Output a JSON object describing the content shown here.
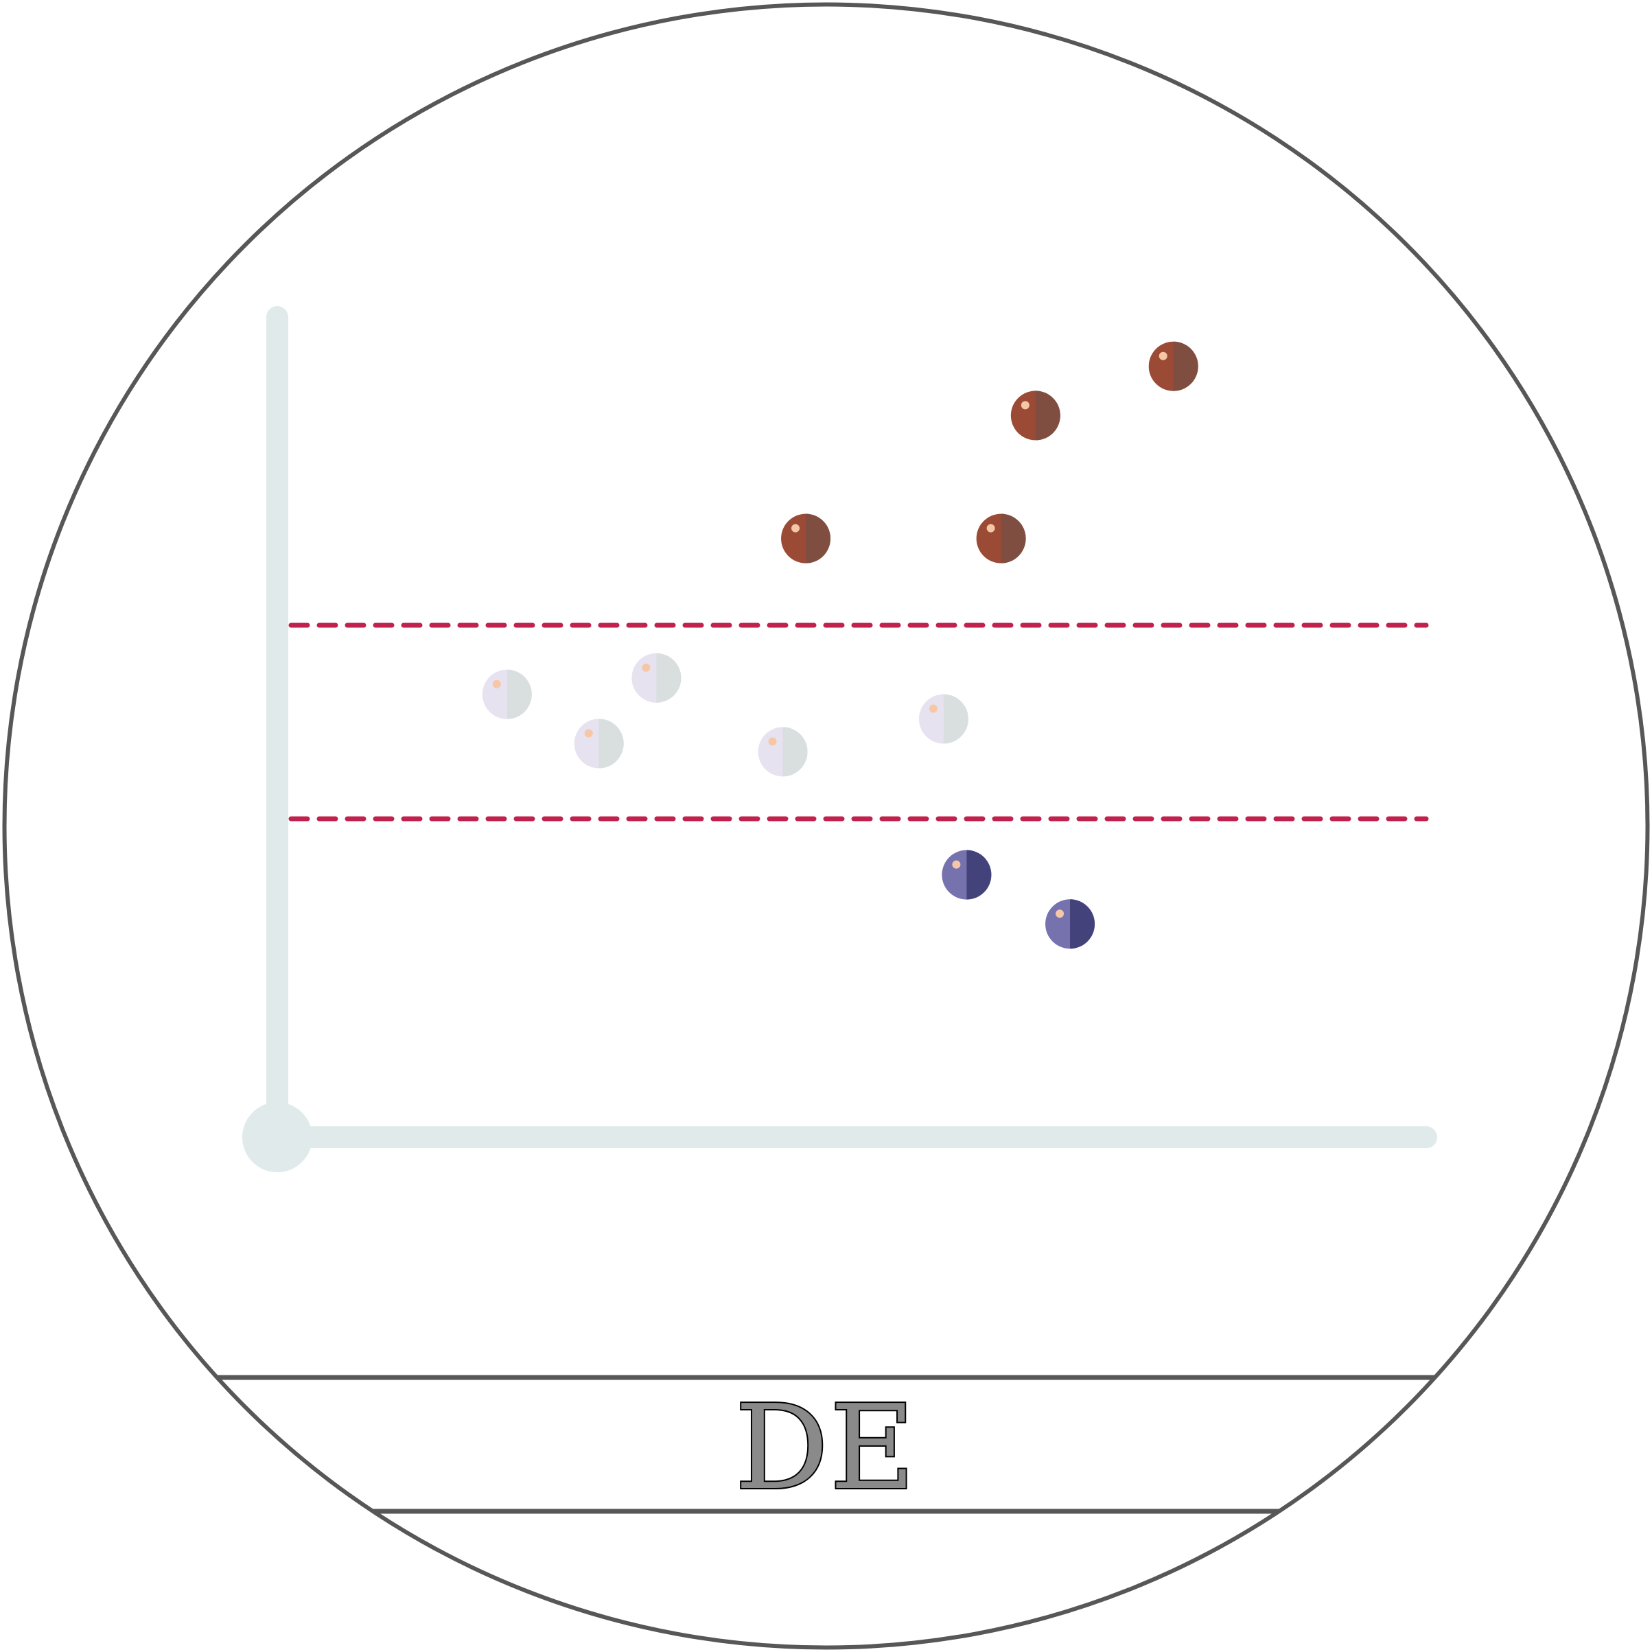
{
  "badge": {
    "label": "DE"
  },
  "colors": {
    "outline": "#575757",
    "axis": "#e0eaea",
    "threshold": "#c0224d",
    "up_light": "#9a4a35",
    "up_dark": "#7f4e40",
    "neutral_light": "#e6e2f0",
    "neutral_dark": "#d9dfdf",
    "down_light": "#7672ad",
    "down_dark": "#43427a",
    "highlight": "#f6c7a6"
  },
  "points": {
    "up": [
      {
        "x": 0.46,
        "y": 0.73
      },
      {
        "x": 0.63,
        "y": 0.73
      },
      {
        "x": 0.66,
        "y": 0.88
      },
      {
        "x": 0.78,
        "y": 0.94
      }
    ],
    "neutral": [
      {
        "x": 0.2,
        "y": 0.54
      },
      {
        "x": 0.28,
        "y": 0.48
      },
      {
        "x": 0.33,
        "y": 0.56
      },
      {
        "x": 0.44,
        "y": 0.47
      },
      {
        "x": 0.58,
        "y": 0.51
      }
    ],
    "down": [
      {
        "x": 0.6,
        "y": 0.32
      },
      {
        "x": 0.69,
        "y": 0.26
      }
    ]
  }
}
